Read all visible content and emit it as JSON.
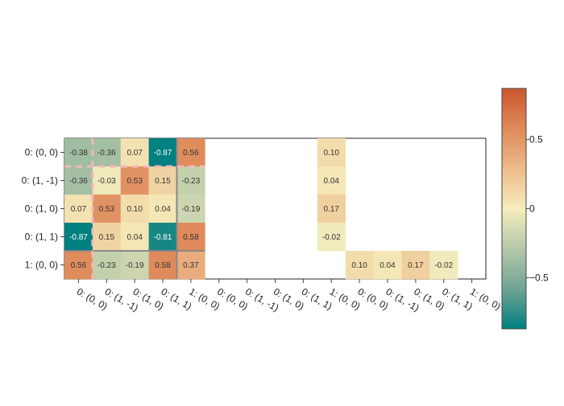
{
  "chart_data": {
    "type": "heatmap",
    "y_categories": [
      "0: (0, 0)",
      "0: (1, -1)",
      "0: (1, 0)",
      "0: (1, 1)",
      "1: (0, 0)"
    ],
    "x_categories": [
      "0: (0, 0)",
      "0: (1, -1)",
      "0: (1, 0)",
      "0: (1, 1)",
      "1: (0, 0)",
      "0: (0, 0)",
      "0: (1, -1)",
      "0: (1, 0)",
      "0: (1, 1)",
      "1: (0, 0)",
      "0: (0, 0)",
      "0: (1, -1)",
      "0: (1, 0)",
      "0: (1, 1)",
      "1: (0, 0)"
    ],
    "values": [
      [
        -0.38,
        -0.36,
        0.07,
        -0.87,
        0.56,
        null,
        null,
        null,
        null,
        0.1,
        null,
        null,
        null,
        null,
        null
      ],
      [
        -0.36,
        -0.03,
        0.53,
        0.15,
        -0.23,
        null,
        null,
        null,
        null,
        0.04,
        null,
        null,
        null,
        null,
        null
      ],
      [
        0.07,
        0.53,
        0.1,
        0.04,
        -0.19,
        null,
        null,
        null,
        null,
        0.17,
        null,
        null,
        null,
        null,
        null
      ],
      [
        -0.87,
        0.15,
        0.04,
        -0.81,
        0.58,
        null,
        null,
        null,
        null,
        -0.02,
        null,
        null,
        null,
        null,
        null
      ],
      [
        0.56,
        -0.23,
        -0.19,
        0.58,
        0.37,
        null,
        null,
        null,
        null,
        null,
        0.1,
        0.04,
        0.17,
        -0.02,
        null
      ]
    ],
    "zlim": [
      -0.87,
      0.87
    ],
    "colorbar_ticks": [
      0.5,
      0,
      -0.5
    ],
    "colorbar_tick_labels": [
      "0.5",
      "0",
      "−0.5"
    ],
    "colorscale": [
      "#008080",
      "#70a494",
      "#b4c8a8",
      "#f6edbd",
      "#edbb8a",
      "#de8a5a",
      "#ca562c"
    ]
  }
}
